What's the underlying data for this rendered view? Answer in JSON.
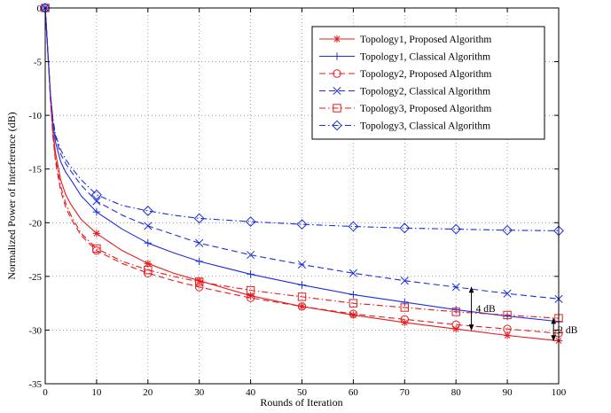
{
  "chart_data": {
    "type": "line",
    "title": "",
    "xlabel": "Rounds of Iteration",
    "ylabel": "Normalized Power of Interference (dB)",
    "xlim": [
      0,
      100
    ],
    "ylim": [
      -35,
      0
    ],
    "xticks": [
      0,
      10,
      20,
      30,
      40,
      50,
      60,
      70,
      80,
      90,
      100
    ],
    "yticks": [
      0,
      -5,
      -10,
      -15,
      -20,
      -25,
      -30,
      -35
    ],
    "grid": true,
    "legend_position": "top-right",
    "marker_x": [
      0,
      10,
      20,
      30,
      40,
      50,
      60,
      70,
      80,
      90,
      100
    ],
    "series": [
      {
        "name": "Topology1, Proposed Algorithm",
        "color": "#e8191c",
        "dash": "solid",
        "marker": "star",
        "x": [
          0,
          0.5,
          1,
          1.5,
          2,
          3,
          4,
          5,
          7,
          10,
          15,
          20,
          25,
          30,
          40,
          50,
          60,
          70,
          80,
          90,
          100
        ],
        "y": [
          0,
          -4,
          -8,
          -11.5,
          -13.5,
          -16,
          -17.4,
          -18.3,
          -19.7,
          -21.0,
          -22.6,
          -23.8,
          -24.7,
          -25.4,
          -26.8,
          -27.8,
          -28.6,
          -29.3,
          -29.9,
          -30.5,
          -31.0
        ]
      },
      {
        "name": "Topology1, Classical Algorithm",
        "color": "#1c2de0",
        "dash": "solid",
        "marker": "plus",
        "x": [
          0,
          0.5,
          1,
          1.5,
          2,
          3,
          4,
          5,
          7,
          10,
          15,
          20,
          25,
          30,
          40,
          50,
          60,
          70,
          80,
          90,
          100
        ],
        "y": [
          0,
          -4,
          -8,
          -10.8,
          -12.5,
          -14.3,
          -15.3,
          -16.0,
          -17.5,
          -19.0,
          -20.6,
          -21.9,
          -22.8,
          -23.6,
          -24.8,
          -25.8,
          -26.7,
          -27.4,
          -28.1,
          -28.7,
          -29.2
        ]
      },
      {
        "name": "Topology2, Proposed Algorithm",
        "color": "#e8191c",
        "dash": "dashed",
        "marker": "circle",
        "x": [
          0,
          0.5,
          1,
          1.5,
          2,
          3,
          4,
          5,
          7,
          10,
          15,
          20,
          25,
          30,
          40,
          50,
          60,
          70,
          80,
          90,
          100
        ],
        "y": [
          0,
          -4,
          -8.5,
          -12,
          -14.3,
          -17.0,
          -18.6,
          -19.6,
          -21.2,
          -22.6,
          -23.8,
          -24.7,
          -25.4,
          -26.0,
          -27.0,
          -27.8,
          -28.5,
          -29.0,
          -29.5,
          -29.9,
          -30.3
        ]
      },
      {
        "name": "Topology2, Classical Algorithm",
        "color": "#1c2de0",
        "dash": "dashed",
        "marker": "x",
        "x": [
          0,
          0.5,
          1,
          1.5,
          2,
          3,
          4,
          5,
          7,
          10,
          15,
          20,
          25,
          30,
          40,
          50,
          60,
          70,
          80,
          90,
          100
        ],
        "y": [
          0,
          -4,
          -8,
          -10.5,
          -12,
          -13.6,
          -14.5,
          -15.2,
          -16.5,
          -18.0,
          -19.3,
          -20.3,
          -21.1,
          -21.9,
          -23.0,
          -23.9,
          -24.7,
          -25.4,
          -26.0,
          -26.6,
          -27.1
        ]
      },
      {
        "name": "Topology3, Proposed Algorithm",
        "color": "#e8191c",
        "dash": "dashdot",
        "marker": "square",
        "x": [
          0,
          0.5,
          1,
          1.5,
          2,
          3,
          4,
          5,
          7,
          10,
          15,
          20,
          25,
          30,
          40,
          50,
          60,
          70,
          80,
          90,
          100
        ],
        "y": [
          0,
          -4,
          -8.3,
          -11.8,
          -14,
          -16.6,
          -18.2,
          -19.3,
          -21.0,
          -22.4,
          -23.6,
          -24.4,
          -25.0,
          -25.5,
          -26.3,
          -26.9,
          -27.5,
          -27.9,
          -28.3,
          -28.6,
          -28.9
        ]
      },
      {
        "name": "Topology3, Classical Algorithm",
        "color": "#1c2de0",
        "dash": "dashdot",
        "marker": "diamond",
        "x": [
          0,
          0.5,
          1,
          1.5,
          2,
          3,
          4,
          5,
          7,
          10,
          15,
          20,
          25,
          30,
          40,
          50,
          60,
          70,
          80,
          90,
          100
        ],
        "y": [
          0,
          -4,
          -8,
          -10.3,
          -11.8,
          -13.2,
          -14.1,
          -14.8,
          -16.0,
          -17.4,
          -18.4,
          -18.9,
          -19.3,
          -19.6,
          -19.9,
          -20.15,
          -20.35,
          -20.5,
          -20.6,
          -20.7,
          -20.75
        ]
      }
    ],
    "annotations": [
      {
        "text": "4 dB",
        "x": 83,
        "y1": -26.0,
        "y2": -30.0
      },
      {
        "text": "2 dB",
        "x": 99,
        "y1": -28.9,
        "y2": -31.0
      }
    ]
  }
}
